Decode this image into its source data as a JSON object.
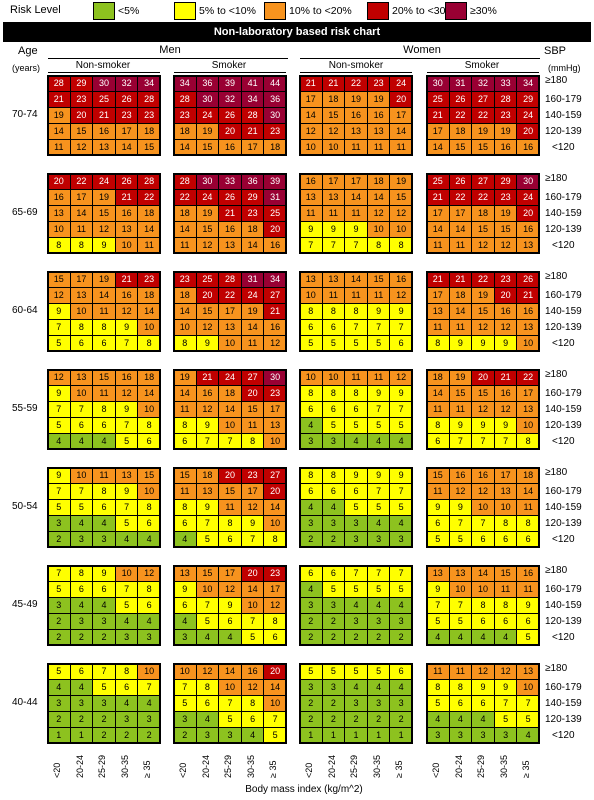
{
  "legend": {
    "title": "Risk Level",
    "items": [
      {
        "label": "<5%",
        "color": "#8dc21f"
      },
      {
        "label": "5% to <10%",
        "color": "#ffff00"
      },
      {
        "label": "10% to <20%",
        "color": "#f7931e"
      },
      {
        "label": "20% to <30%",
        "color": "#c00000"
      },
      {
        "label": "≥30%",
        "color": "#990033"
      }
    ]
  },
  "header": {
    "title": "Non-laboratory based risk chart",
    "age_label": "Age",
    "years_label": "(years)",
    "sbp_label": "SBP",
    "mmhg_label": "(mmHg)",
    "men": "Men",
    "women": "Women",
    "non_smoker": "Non-smoker",
    "smoker": "Smoker"
  },
  "chart_data": {
    "type": "table",
    "title": "Non-laboratory based risk chart",
    "xlabel": "Body mass index (kg/m^2)",
    "bmi_categories": [
      "<20",
      "20-24",
      "25-29",
      "30-35",
      "≥ 35"
    ],
    "sbp_categories": [
      "≥180",
      "160-179",
      "140-159",
      "120-139",
      "<120"
    ],
    "age_groups": [
      "70-74",
      "65-69",
      "60-64",
      "55-59",
      "50-54",
      "45-49",
      "40-44"
    ],
    "column_groups": [
      "Men Non-smoker",
      "Men Smoker",
      "Women Non-smoker",
      "Women Smoker"
    ],
    "values": [
      [
        [
          [
            28,
            29,
            30,
            32,
            34
          ],
          [
            21,
            23,
            25,
            26,
            28
          ],
          [
            19,
            20,
            21,
            23,
            23
          ],
          [
            14,
            15,
            16,
            17,
            18
          ],
          [
            11,
            12,
            13,
            14,
            15
          ]
        ],
        [
          [
            34,
            36,
            39,
            41,
            44
          ],
          [
            28,
            30,
            32,
            34,
            36
          ],
          [
            23,
            24,
            26,
            28,
            30
          ],
          [
            18,
            19,
            20,
            21,
            23
          ],
          [
            14,
            15,
            16,
            17,
            18
          ]
        ],
        [
          [
            21,
            21,
            22,
            23,
            24
          ],
          [
            17,
            18,
            19,
            19,
            20
          ],
          [
            14,
            15,
            16,
            16,
            17
          ],
          [
            12,
            12,
            13,
            13,
            14
          ],
          [
            10,
            10,
            11,
            11,
            11
          ]
        ],
        [
          [
            30,
            31,
            32,
            33,
            34
          ],
          [
            25,
            26,
            27,
            28,
            29
          ],
          [
            21,
            22,
            22,
            23,
            24
          ],
          [
            17,
            18,
            19,
            19,
            20
          ],
          [
            14,
            15,
            15,
            16,
            16
          ]
        ]
      ],
      [
        [
          [
            20,
            22,
            24,
            26,
            28
          ],
          [
            16,
            17,
            19,
            21,
            22
          ],
          [
            13,
            14,
            15,
            16,
            18
          ],
          [
            10,
            11,
            12,
            13,
            14
          ],
          [
            8,
            8,
            9,
            10,
            11
          ]
        ],
        [
          [
            28,
            30,
            33,
            36,
            39
          ],
          [
            22,
            24,
            26,
            29,
            31
          ],
          [
            18,
            19,
            21,
            23,
            25
          ],
          [
            14,
            15,
            16,
            18,
            20
          ],
          [
            11,
            12,
            13,
            14,
            16
          ]
        ],
        [
          [
            16,
            17,
            17,
            18,
            19
          ],
          [
            13,
            13,
            14,
            14,
            15
          ],
          [
            11,
            11,
            11,
            12,
            12
          ],
          [
            9,
            9,
            9,
            10,
            10
          ],
          [
            7,
            7,
            7,
            8,
            8
          ]
        ],
        [
          [
            25,
            26,
            27,
            29,
            30
          ],
          [
            21,
            22,
            22,
            23,
            24
          ],
          [
            17,
            17,
            18,
            19,
            20
          ],
          [
            14,
            14,
            15,
            15,
            16
          ],
          [
            11,
            11,
            12,
            12,
            13
          ]
        ]
      ],
      [
        [
          [
            15,
            17,
            19,
            21,
            23
          ],
          [
            12,
            13,
            14,
            16,
            18
          ],
          [
            9,
            10,
            11,
            12,
            14
          ],
          [
            7,
            8,
            8,
            9,
            10
          ],
          [
            5,
            6,
            6,
            7,
            8
          ]
        ],
        [
          [
            23,
            25,
            28,
            31,
            34
          ],
          [
            18,
            20,
            22,
            24,
            27
          ],
          [
            14,
            15,
            17,
            19,
            21
          ],
          [
            10,
            12,
            13,
            14,
            16
          ],
          [
            8,
            9,
            10,
            11,
            12
          ]
        ],
        [
          [
            13,
            13,
            14,
            15,
            16
          ],
          [
            10,
            11,
            11,
            11,
            12
          ],
          [
            8,
            8,
            8,
            9,
            9
          ],
          [
            6,
            6,
            7,
            7,
            7
          ],
          [
            5,
            5,
            5,
            5,
            6
          ]
        ],
        [
          [
            21,
            21,
            22,
            23,
            26
          ],
          [
            17,
            18,
            19,
            20,
            21
          ],
          [
            13,
            14,
            15,
            16,
            16
          ],
          [
            11,
            11,
            12,
            12,
            13
          ],
          [
            8,
            9,
            9,
            9,
            10
          ]
        ]
      ],
      [
        [
          [
            12,
            13,
            15,
            16,
            18
          ],
          [
            9,
            10,
            11,
            12,
            14
          ],
          [
            7,
            7,
            8,
            9,
            10
          ],
          [
            5,
            6,
            6,
            7,
            8
          ],
          [
            4,
            4,
            4,
            5,
            6
          ]
        ],
        [
          [
            19,
            21,
            24,
            27,
            30
          ],
          [
            14,
            16,
            18,
            20,
            23
          ],
          [
            11,
            12,
            14,
            15,
            17
          ],
          [
            8,
            9,
            10,
            11,
            13
          ],
          [
            6,
            7,
            7,
            8,
            10
          ]
        ],
        [
          [
            10,
            10,
            11,
            11,
            12
          ],
          [
            8,
            8,
            8,
            9,
            9
          ],
          [
            6,
            6,
            6,
            7,
            7
          ],
          [
            4,
            5,
            5,
            5,
            5
          ],
          [
            3,
            3,
            4,
            4,
            4
          ]
        ],
        [
          [
            18,
            19,
            20,
            21,
            22
          ],
          [
            14,
            15,
            15,
            16,
            17
          ],
          [
            11,
            11,
            12,
            12,
            13
          ],
          [
            8,
            9,
            9,
            9,
            10
          ],
          [
            6,
            7,
            7,
            7,
            8
          ]
        ]
      ],
      [
        [
          [
            9,
            10,
            11,
            13,
            15
          ],
          [
            7,
            7,
            8,
            9,
            10
          ],
          [
            5,
            5,
            6,
            7,
            8
          ],
          [
            3,
            4,
            4,
            5,
            6
          ],
          [
            2,
            3,
            3,
            4,
            4
          ]
        ],
        [
          [
            15,
            18,
            20,
            23,
            27
          ],
          [
            11,
            13,
            15,
            17,
            20
          ],
          [
            8,
            9,
            11,
            12,
            14
          ],
          [
            6,
            7,
            8,
            9,
            10
          ],
          [
            4,
            5,
            6,
            7,
            8
          ]
        ],
        [
          [
            8,
            8,
            9,
            9,
            9
          ],
          [
            6,
            6,
            6,
            7,
            7
          ],
          [
            4,
            4,
            5,
            5,
            5
          ],
          [
            3,
            3,
            3,
            4,
            4
          ],
          [
            2,
            2,
            3,
            3,
            3
          ]
        ],
        [
          [
            15,
            16,
            16,
            17,
            18
          ],
          [
            11,
            12,
            12,
            13,
            14
          ],
          [
            9,
            9,
            10,
            10,
            11
          ],
          [
            6,
            7,
            7,
            8,
            8
          ],
          [
            5,
            5,
            6,
            6,
            6
          ]
        ]
      ],
      [
        [
          [
            7,
            8,
            9,
            10,
            12
          ],
          [
            5,
            6,
            6,
            7,
            8
          ],
          [
            3,
            4,
            4,
            5,
            6
          ],
          [
            2,
            3,
            3,
            4,
            4
          ],
          [
            2,
            2,
            2,
            3,
            3
          ]
        ],
        [
          [
            13,
            15,
            17,
            20,
            23
          ],
          [
            9,
            10,
            12,
            14,
            17
          ],
          [
            6,
            7,
            9,
            10,
            12
          ],
          [
            4,
            5,
            6,
            7,
            8
          ],
          [
            3,
            4,
            4,
            5,
            6
          ]
        ],
        [
          [
            6,
            6,
            7,
            7,
            7
          ],
          [
            4,
            5,
            5,
            5,
            5
          ],
          [
            3,
            3,
            4,
            4,
            4
          ],
          [
            2,
            2,
            3,
            3,
            3
          ],
          [
            2,
            2,
            2,
            2,
            2
          ]
        ],
        [
          [
            13,
            13,
            14,
            15,
            16
          ],
          [
            9,
            10,
            10,
            11,
            11
          ],
          [
            7,
            7,
            8,
            8,
            9
          ],
          [
            5,
            5,
            6,
            6,
            6
          ],
          [
            4,
            4,
            4,
            4,
            5
          ]
        ]
      ],
      [
        [
          [
            5,
            6,
            7,
            8,
            10
          ],
          [
            4,
            4,
            5,
            6,
            7
          ],
          [
            3,
            3,
            3,
            4,
            4
          ],
          [
            2,
            2,
            2,
            3,
            3
          ],
          [
            1,
            1,
            2,
            2,
            2
          ]
        ],
        [
          [
            10,
            12,
            14,
            16,
            20
          ],
          [
            7,
            8,
            10,
            12,
            14
          ],
          [
            5,
            6,
            7,
            8,
            10
          ],
          [
            3,
            4,
            5,
            6,
            7
          ],
          [
            2,
            3,
            3,
            4,
            5
          ]
        ],
        [
          [
            5,
            5,
            5,
            5,
            6
          ],
          [
            3,
            3,
            4,
            4,
            4
          ],
          [
            2,
            2,
            3,
            3,
            3
          ],
          [
            2,
            2,
            2,
            2,
            2
          ],
          [
            1,
            1,
            1,
            1,
            1
          ]
        ],
        [
          [
            11,
            11,
            12,
            12,
            13
          ],
          [
            8,
            8,
            9,
            9,
            10
          ],
          [
            5,
            6,
            6,
            7,
            7
          ],
          [
            4,
            4,
            4,
            5,
            5
          ],
          [
            3,
            3,
            3,
            3,
            4
          ]
        ]
      ]
    ]
  }
}
